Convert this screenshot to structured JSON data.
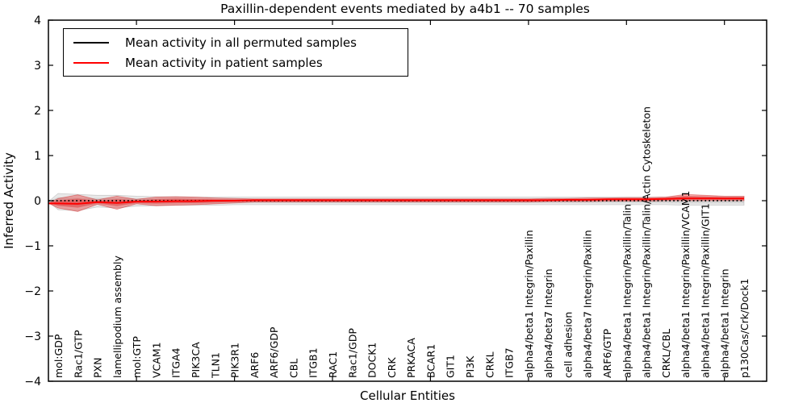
{
  "chart_data": {
    "type": "line",
    "title": "Paxillin-dependent events mediated by a4b1 -- 70 samples",
    "xlabel": "Cellular Entities",
    "ylabel": "Inferred Activity",
    "ylim": [
      -4,
      4
    ],
    "yticks": [
      -4,
      -3,
      -2,
      -1,
      0,
      1,
      2,
      3,
      4
    ],
    "ytick_labels": [
      "−4",
      "−3",
      "−2",
      "−1",
      "0",
      "1",
      "2",
      "3",
      "4"
    ],
    "xtick_indices": [
      4,
      9,
      14,
      19,
      24,
      29,
      34
    ],
    "grid": false,
    "legend_position": "upper left",
    "categories": [
      "mol:GDP",
      "Rac1/GTP",
      "PXN",
      "lamellipodium assembly",
      "mol:GTP",
      "VCAM1",
      "ITGA4",
      "PIK3CA",
      "TLN1",
      "PIK3R1",
      "ARF6",
      "ARF6/GDP",
      "CBL",
      "ITGB1",
      "RAC1",
      "Rac1/GDP",
      "DOCK1",
      "CRK",
      "PRKACA",
      "BCAR1",
      "GIT1",
      "PI3K",
      "CRKL",
      "ITGB7",
      "alpha4/beta1 Integrin/Paxillin",
      "alpha4/beta7 Integrin",
      "cell adhesion",
      "alpha4/beta7 Integrin/Paxillin",
      "ARF6/GTP",
      "alpha4/beta1 Integrin/Paxillin/Talin",
      "alpha4/beta1 Integrin/Paxillin/Talin/Actin Cytoskeleton",
      "CRKL/CBL",
      "alpha4/beta1 Integrin/Paxillin/VCAM1",
      "alpha4/beta1 Integrin/Paxillin/GIT1",
      "alpha4/beta1 Integrin",
      "p130Cas/Crk/Dock1"
    ],
    "legend": [
      {
        "label": "Mean activity in all permuted samples",
        "color": "#000000"
      },
      {
        "label": "Mean activity in patient samples",
        "color": "#ff0000"
      }
    ],
    "series": [
      {
        "name": "mean-permuted-line",
        "style": "dotted",
        "color": "#000000",
        "values": [
          0,
          0,
          0,
          0,
          0,
          0,
          0,
          0,
          0,
          0,
          0,
          0,
          0,
          0,
          0,
          0,
          0,
          0,
          0,
          0,
          0,
          0,
          0,
          0,
          0,
          0,
          0,
          0,
          0,
          0,
          0,
          0,
          0,
          0,
          0,
          0
        ]
      },
      {
        "name": "mean-patient-line",
        "style": "solid",
        "color": "#ff0000",
        "values": [
          -0.06,
          -0.07,
          -0.03,
          -0.05,
          -0.02,
          -0.02,
          -0.01,
          -0.01,
          0,
          0,
          0.01,
          0.01,
          0.01,
          0.01,
          0.01,
          0.01,
          0.01,
          0.01,
          0.01,
          0.01,
          0.01,
          0.01,
          0.01,
          0.01,
          0.01,
          0.01,
          0.02,
          0.02,
          0.03,
          0.03,
          0.03,
          0.04,
          0.05,
          0.05,
          0.05,
          0.05
        ]
      }
    ],
    "bands": [
      {
        "name": "permuted-spread",
        "fill": "rgba(130,130,130,0.18)",
        "stroke": "rgba(120,120,120,0.30)",
        "upper": [
          0.16,
          0.14,
          0.12,
          0.12,
          0.1,
          0.09,
          0.09,
          0.08,
          0.08,
          0.08,
          0.08,
          0.08,
          0.08,
          0.08,
          0.08,
          0.08,
          0.08,
          0.08,
          0.08,
          0.08,
          0.08,
          0.08,
          0.08,
          0.08,
          0.08,
          0.08,
          0.08,
          0.08,
          0.08,
          0.08,
          0.08,
          0.08,
          0.09,
          0.09,
          0.09,
          0.09
        ],
        "lower": [
          -0.2,
          -0.22,
          -0.14,
          -0.16,
          -0.12,
          -0.11,
          -0.1,
          -0.1,
          -0.1,
          -0.09,
          -0.09,
          -0.09,
          -0.09,
          -0.09,
          -0.09,
          -0.09,
          -0.09,
          -0.09,
          -0.09,
          -0.09,
          -0.09,
          -0.09,
          -0.09,
          -0.09,
          -0.09,
          -0.09,
          -0.09,
          -0.09,
          -0.09,
          -0.09,
          -0.09,
          -0.09,
          -0.1,
          -0.1,
          -0.1,
          -0.1
        ]
      },
      {
        "name": "patient-spread",
        "fill": "rgba(228,38,38,0.38)",
        "stroke": "rgba(200,25,25,0.45)",
        "upper": [
          0.05,
          0.13,
          0.02,
          0.1,
          0.03,
          0.08,
          0.09,
          0.08,
          0.06,
          0.05,
          0.04,
          0.04,
          0.04,
          0.04,
          0.04,
          0.04,
          0.04,
          0.04,
          0.04,
          0.04,
          0.04,
          0.04,
          0.04,
          0.04,
          0.04,
          0.05,
          0.05,
          0.06,
          0.06,
          0.07,
          0.07,
          0.08,
          0.14,
          0.12,
          0.1,
          0.1
        ],
        "lower": [
          -0.16,
          -0.24,
          -0.08,
          -0.19,
          -0.07,
          -0.11,
          -0.1,
          -0.09,
          -0.07,
          -0.05,
          -0.03,
          -0.03,
          -0.03,
          -0.03,
          -0.03,
          -0.03,
          -0.03,
          -0.03,
          -0.03,
          -0.03,
          -0.03,
          -0.03,
          -0.03,
          -0.03,
          -0.03,
          -0.02,
          -0.02,
          -0.02,
          -0.01,
          -0.01,
          -0.01,
          0,
          0,
          0,
          0,
          0
        ]
      }
    ]
  }
}
